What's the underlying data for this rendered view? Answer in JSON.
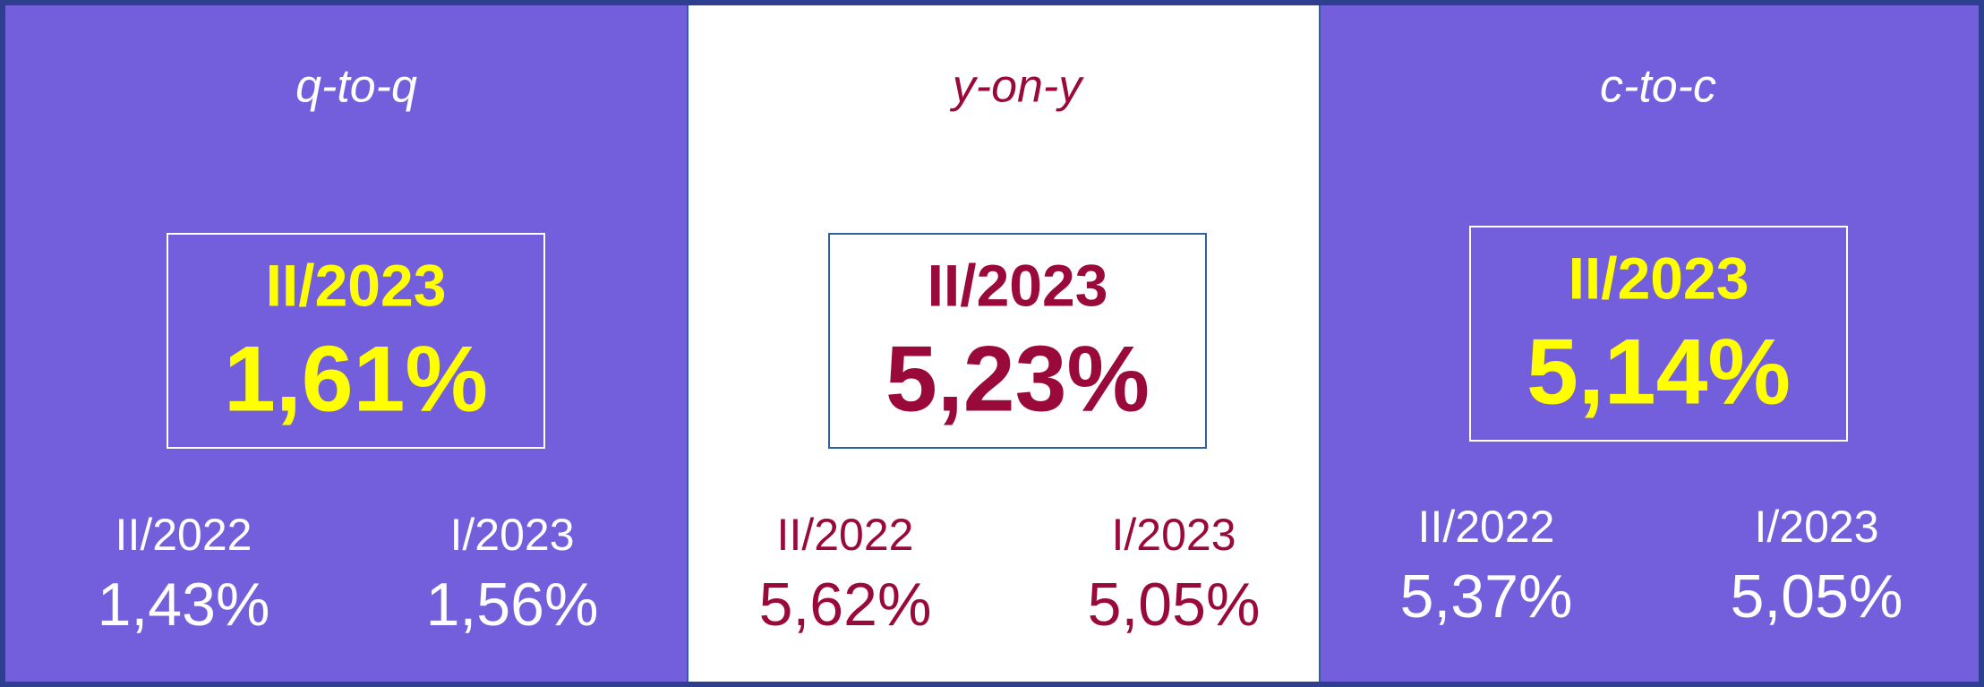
{
  "panels": [
    {
      "title": "q-to-q",
      "main": {
        "period": "II/2023",
        "value": "1,61%"
      },
      "items": [
        {
          "period": "II/2022",
          "value": "1,43%"
        },
        {
          "period": "I/2023",
          "value": "1,56%"
        }
      ]
    },
    {
      "title": "y-on-y",
      "main": {
        "period": "II/2023",
        "value": "5,23%"
      },
      "items": [
        {
          "period": "II/2022",
          "value": "5,62%"
        },
        {
          "period": "I/2023",
          "value": "5,05%"
        }
      ]
    },
    {
      "title": "c-to-c",
      "main": {
        "period": "II/2023",
        "value": "5,14%"
      },
      "items": [
        {
          "period": "II/2022",
          "value": "5,37%"
        },
        {
          "period": "I/2023",
          "value": "5,05%"
        }
      ]
    }
  ]
}
